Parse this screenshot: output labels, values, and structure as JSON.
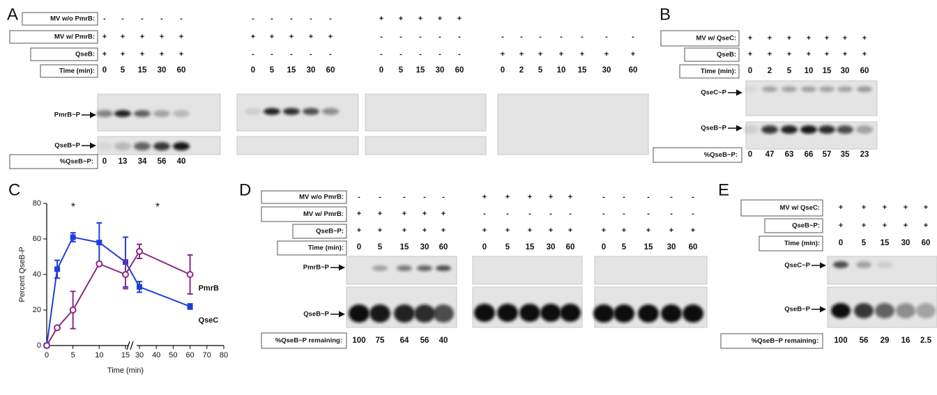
{
  "panels": {
    "A": {
      "letter": "A",
      "row_labels": [
        "MV w/o PmrB:",
        "MV w/ PmrB:",
        "QseB:",
        "Time (min):"
      ],
      "lane_groups": [
        {
          "rows": [
            [
              "-",
              "-",
              "-",
              "-",
              "-"
            ],
            [
              "+",
              "+",
              "+",
              "+",
              "+"
            ],
            [
              "+",
              "+",
              "+",
              "+",
              "+"
            ]
          ],
          "times": [
            0,
            5,
            15,
            30,
            60
          ]
        },
        {
          "rows": [
            [
              "-",
              "-",
              "-",
              "-",
              "-"
            ],
            [
              "+",
              "+",
              "+",
              "+",
              "+"
            ],
            [
              "-",
              "-",
              "-",
              "-",
              "-"
            ]
          ],
          "times": [
            0,
            5,
            15,
            30,
            60
          ]
        },
        {
          "rows": [
            [
              "+",
              "+",
              "+",
              "+",
              "+"
            ],
            [
              "-",
              "-",
              "-",
              "-",
              "-"
            ],
            [
              "-",
              "-",
              "-",
              "-",
              "-"
            ]
          ],
          "times": [
            0,
            5,
            15,
            30,
            60
          ]
        },
        {
          "rows": [
            null,
            [
              "-",
              "-",
              "-",
              "-",
              "-",
              "-",
              "-"
            ],
            [
              "+",
              "+",
              "+",
              "+",
              "+",
              "+",
              "+"
            ]
          ],
          "times": [
            0,
            2,
            5,
            10,
            15,
            30,
            60
          ]
        }
      ],
      "gel_labels": [
        "PmrB~P",
        "QseB~P"
      ],
      "percent_label": "%QseB~P:",
      "percent_values": [
        0,
        13,
        34,
        56,
        40
      ]
    },
    "B": {
      "letter": "B",
      "row_labels": [
        "MV w/ QseC:",
        "QseB:",
        "Time (min):"
      ],
      "lane_groups": [
        {
          "rows": [
            [
              "+",
              "+",
              "+",
              "+",
              "+",
              "+",
              "+"
            ],
            [
              "+",
              "+",
              "+",
              "+",
              "+",
              "+",
              "+"
            ]
          ],
          "times": [
            0,
            2,
            5,
            10,
            15,
            30,
            60
          ]
        }
      ],
      "gel_labels": [
        "QseC~P",
        "QseB~P"
      ],
      "percent_label": "%QseB~P:",
      "percent_values": [
        0,
        47,
        63,
        66,
        57,
        35,
        23
      ]
    },
    "D": {
      "letter": "D",
      "row_labels": [
        "MV w/o PmrB:",
        "MV w/ PmrB:",
        "QseB~P:",
        "Time (min):"
      ],
      "lane_groups": [
        {
          "rows": [
            [
              "-",
              "-",
              "-",
              "-",
              "-"
            ],
            [
              "+",
              "+",
              "+",
              "+",
              "+"
            ],
            [
              "+",
              "+",
              "+",
              "+",
              "+"
            ]
          ],
          "times": [
            0,
            5,
            15,
            30,
            60
          ]
        },
        {
          "rows": [
            [
              "+",
              "+",
              "+",
              "+",
              "+"
            ],
            [
              "-",
              "-",
              "-",
              "-",
              "-"
            ],
            [
              "+",
              "+",
              "+",
              "+",
              "+"
            ]
          ],
          "times": [
            0,
            5,
            15,
            30,
            60
          ]
        },
        {
          "rows": [
            [
              "-",
              "-",
              "-",
              "-",
              "-"
            ],
            [
              "-",
              "-",
              "-",
              "-",
              "-"
            ],
            [
              "+",
              "+",
              "+",
              "+",
              "+"
            ]
          ],
          "times": [
            0,
            5,
            15,
            30,
            60
          ]
        }
      ],
      "gel_labels": [
        "PmrB~P",
        "QseB~P"
      ],
      "percent_label": "%QseB~P remaining:",
      "percent_values": [
        100,
        75,
        64,
        56,
        40
      ]
    },
    "E": {
      "letter": "E",
      "row_labels": [
        "MV w/ QseC:",
        "QseB~P:",
        "Time (min):"
      ],
      "lane_groups": [
        {
          "rows": [
            [
              "+",
              "+",
              "+",
              "+",
              "+"
            ],
            [
              "+",
              "+",
              "+",
              "+",
              "+"
            ]
          ],
          "times": [
            0,
            5,
            15,
            30,
            60
          ]
        }
      ],
      "gel_labels": [
        "QseC~P",
        "QseB~P"
      ],
      "percent_label": "%QseB~P remaining:",
      "percent_values": [
        100,
        56,
        29,
        16,
        2.5
      ]
    }
  },
  "chart_data": {
    "type": "line",
    "panel_letter": "C",
    "x_label": "Time (min)",
    "y_label": "Percent QseB-P",
    "xlim": [
      0,
      80
    ],
    "ylim": [
      0,
      80
    ],
    "x_break": [
      15,
      30
    ],
    "xticks": [
      0,
      5,
      10,
      15,
      30,
      40,
      50,
      60,
      70,
      80
    ],
    "yticks": [
      0,
      20,
      40,
      60,
      80
    ],
    "series": [
      {
        "name": "QseC",
        "color": "#1f3fd9",
        "marker": "square",
        "x": [
          0,
          2,
          5,
          10,
          15,
          30,
          60
        ],
        "values": [
          0,
          43,
          61,
          58,
          47,
          33,
          22
        ],
        "errors": [
          0,
          5,
          2.5,
          11,
          14,
          3,
          1.5
        ]
      },
      {
        "name": "PmrB",
        "color": "#8b2a86",
        "marker": "open-circle",
        "x": [
          0,
          2,
          5,
          10,
          15,
          30,
          60
        ],
        "values": [
          0,
          10,
          20,
          46,
          40,
          53,
          40
        ],
        "errors": [
          0,
          0,
          10.5,
          0,
          8,
          4,
          11
        ]
      }
    ],
    "annotations": [
      "*",
      "*"
    ]
  }
}
